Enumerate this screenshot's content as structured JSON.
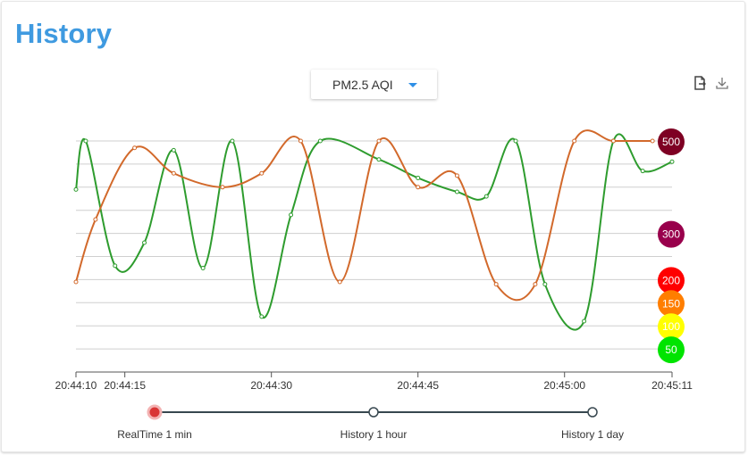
{
  "page": {
    "title": "History"
  },
  "selector": {
    "selected": "PM2.5 AQI",
    "caret": "chevron-down-icon"
  },
  "toolbar": {
    "export_icon": "file-export-icon",
    "download_icon": "download-icon"
  },
  "colors": {
    "title": "#3f9ae0",
    "series_green": "#2e9c2e",
    "series_orange": "#d2692b",
    "aqi_500": "#7e0023",
    "aqi_300": "#99004c",
    "aqi_200": "#ff0000",
    "aqi_150": "#ff7e00",
    "aqi_100": "#ffff00",
    "aqi_50": "#00e400",
    "timeline_active": "#d93535"
  },
  "chart_data": {
    "type": "line",
    "x_ticks": [
      "20:44:10",
      "20:44:15",
      "20:44:30",
      "20:44:45",
      "20:45:00",
      "20:45:11"
    ],
    "x_tick_seconds": [
      0,
      5,
      20,
      35,
      50,
      61
    ],
    "xlim": [
      0,
      61
    ],
    "ylim": [
      0,
      500
    ],
    "grid": true,
    "aqi_levels": [
      {
        "value": 500,
        "label": "500",
        "color": "#7e0023",
        "text_color": "#ffffff"
      },
      {
        "value": 300,
        "label": "300",
        "color": "#99004c",
        "text_color": "#ffffff"
      },
      {
        "value": 200,
        "label": "200",
        "color": "#ff0000",
        "text_color": "#ffffff"
      },
      {
        "value": 150,
        "label": "150",
        "color": "#ff7e00",
        "text_color": "#ffffff"
      },
      {
        "value": 100,
        "label": "100",
        "color": "#ffff00",
        "text_color": "#ffffff"
      },
      {
        "value": 50,
        "label": "50",
        "color": "#00e400",
        "text_color": "#ffffff"
      }
    ],
    "series": [
      {
        "color": "#2e9c2e",
        "points": [
          [
            0,
            395
          ],
          [
            1,
            500
          ],
          [
            4,
            230
          ],
          [
            7,
            280
          ],
          [
            10,
            480
          ],
          [
            13,
            225
          ],
          [
            16,
            500
          ],
          [
            19,
            120
          ],
          [
            22,
            340
          ],
          [
            25,
            500
          ],
          [
            31,
            460
          ],
          [
            35,
            420
          ],
          [
            39,
            390
          ],
          [
            42,
            380
          ],
          [
            45,
            500
          ],
          [
            48,
            190
          ],
          [
            52,
            110
          ],
          [
            55,
            500
          ],
          [
            58,
            435
          ],
          [
            61,
            455
          ]
        ]
      },
      {
        "color": "#d2692b",
        "points": [
          [
            0,
            195
          ],
          [
            2,
            330
          ],
          [
            6,
            485
          ],
          [
            10,
            430
          ],
          [
            15,
            400
          ],
          [
            19,
            430
          ],
          [
            23,
            500
          ],
          [
            27,
            195
          ],
          [
            31,
            500
          ],
          [
            35,
            400
          ],
          [
            39,
            425
          ],
          [
            43,
            190
          ],
          [
            47,
            190
          ],
          [
            51,
            500
          ],
          [
            55,
            500
          ],
          [
            59,
            500
          ]
        ]
      }
    ]
  },
  "timeline": {
    "options": [
      {
        "label": "RealTime 1 min",
        "active": true
      },
      {
        "label": "History 1 hour",
        "active": false
      },
      {
        "label": "History 1 day",
        "active": false
      }
    ]
  }
}
